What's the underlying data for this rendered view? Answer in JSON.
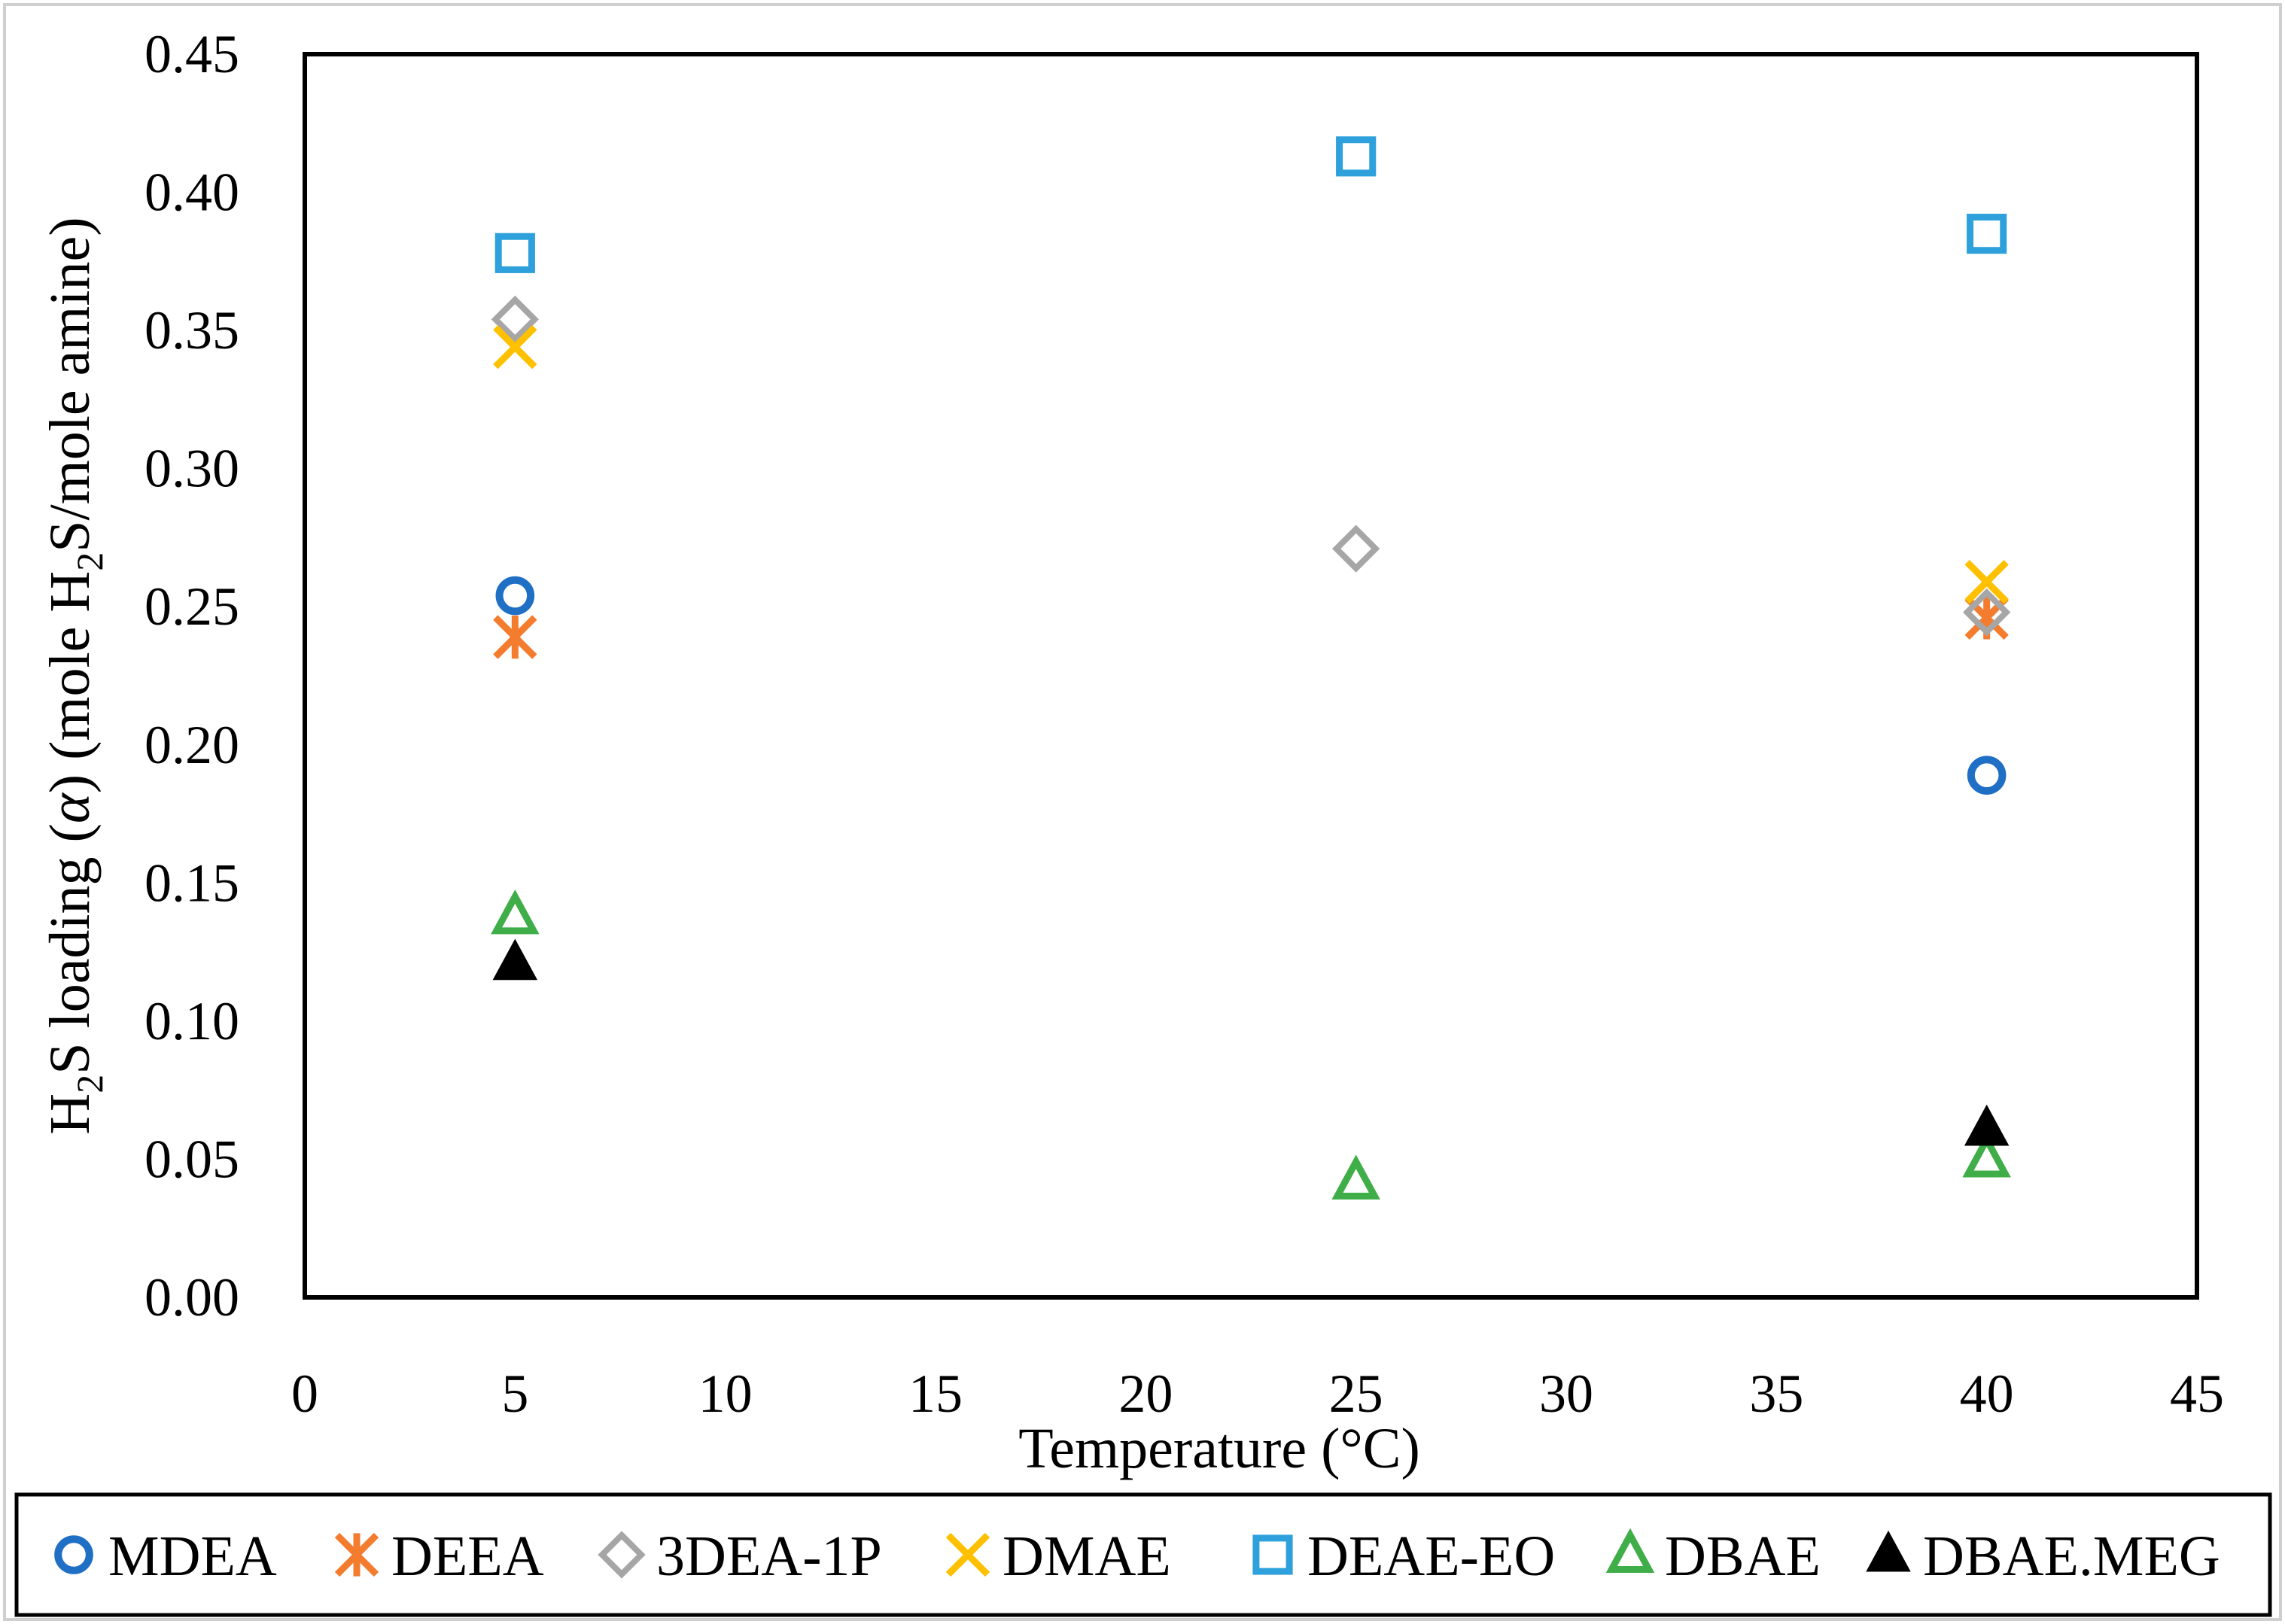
{
  "chart_data": {
    "type": "scatter",
    "title": "",
    "xlabel": "Temperature (°C)",
    "ylabel": {
      "prefix": "H",
      "sub1": "2",
      "mid": "S loading (",
      "alpha": "α",
      "mid2": ") (mole H",
      "sub2": "2",
      "suffix": "S/mole amine)"
    },
    "xlim": [
      0,
      45
    ],
    "ylim": [
      0,
      0.45
    ],
    "xticks": [
      0,
      5,
      10,
      15,
      20,
      25,
      30,
      35,
      40,
      45
    ],
    "xtick_labels": [
      "0",
      "5",
      "10",
      "15",
      "20",
      "25",
      "30",
      "35",
      "40",
      "45"
    ],
    "yticks": [
      0,
      0.05,
      0.1,
      0.15,
      0.2,
      0.25,
      0.3,
      0.35,
      0.4,
      0.45
    ],
    "ytick_labels": [
      "0.00",
      "0.05",
      "0.10",
      "0.15",
      "0.20",
      "0.25",
      "0.30",
      "0.35",
      "0.40",
      "0.45"
    ],
    "grid": false,
    "legend_position": "bottom",
    "series": [
      {
        "name": "MDEA",
        "marker": "circle",
        "color": "#1f6fc5",
        "points": [
          [
            5,
            0.254
          ],
          [
            40,
            0.189
          ]
        ]
      },
      {
        "name": "DEEA",
        "marker": "asterisk",
        "color": "#f47c2f",
        "points": [
          [
            5,
            0.239
          ],
          [
            40,
            0.246
          ]
        ]
      },
      {
        "name": "3DEA-1P",
        "marker": "diamond",
        "color": "#a6a6a6",
        "points": [
          [
            5,
            0.354
          ],
          [
            25,
            0.271
          ],
          [
            40,
            0.248
          ]
        ]
      },
      {
        "name": "DMAE",
        "marker": "x",
        "color": "#ffc000",
        "points": [
          [
            5,
            0.344
          ],
          [
            40,
            0.259
          ]
        ]
      },
      {
        "name": "DEAE-EO",
        "marker": "square",
        "color": "#2ea0db",
        "points": [
          [
            5,
            0.378
          ],
          [
            25,
            0.413
          ],
          [
            40,
            0.385
          ]
        ]
      },
      {
        "name": "DBAE",
        "marker": "triangle-open",
        "color": "#3fae49",
        "points": [
          [
            5,
            0.138
          ],
          [
            25,
            0.042
          ],
          [
            40,
            0.05
          ]
        ]
      },
      {
        "name": "DBAE.MEG",
        "marker": "triangle-filled",
        "color": "#000000",
        "points": [
          [
            5,
            0.121
          ],
          [
            40,
            0.061
          ]
        ]
      }
    ]
  }
}
